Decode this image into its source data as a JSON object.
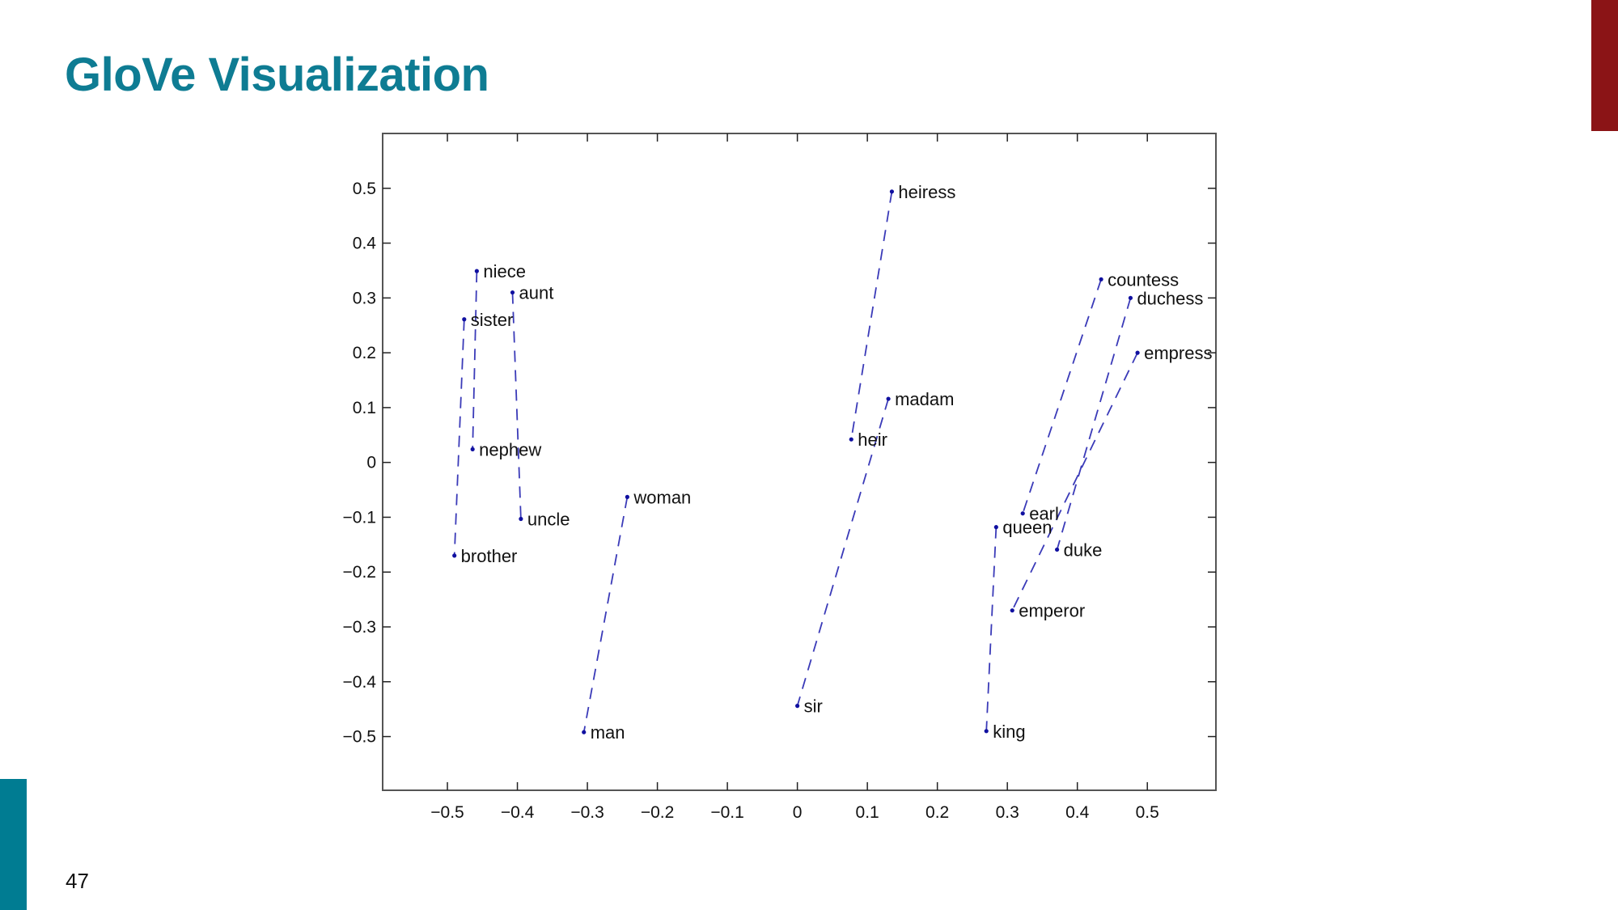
{
  "slide": {
    "title": "GloVe Visualization",
    "page_number": "47",
    "colors": {
      "title": "#0e7c93",
      "accent_top_right": "#8b1416",
      "accent_bottom_left": "#007c92",
      "series_line": "#3a3ab8",
      "point": "#1010a0",
      "axis": "#555555",
      "label": "#111111"
    }
  },
  "chart_data": {
    "type": "scatter",
    "title": "",
    "xlabel": "",
    "ylabel": "",
    "xlim": [
      -0.5925,
      0.598
    ],
    "ylim": [
      -0.598,
      0.6
    ],
    "grid": false,
    "legend": null,
    "xticks": [
      -0.5,
      -0.4,
      -0.3,
      -0.2,
      -0.1,
      0,
      0.1,
      0.2,
      0.3,
      0.4,
      0.5
    ],
    "xtick_labels": [
      "−0.5",
      "−0.4",
      "−0.3",
      "−0.2",
      "−0.1",
      "0",
      "0.1",
      "0.2",
      "0.3",
      "0.4",
      "0.5"
    ],
    "yticks": [
      0.5,
      0.4,
      0.3,
      0.2,
      0.1,
      0,
      -0.1,
      -0.2,
      -0.3,
      -0.4,
      -0.5
    ],
    "ytick_labels": [
      "0.5",
      "0.4",
      "0.3",
      "0.2",
      "0.1",
      "0",
      "−0.1",
      "−0.2",
      "−0.3",
      "−0.4",
      "−0.5"
    ],
    "points": [
      {
        "label": "niece",
        "x": -0.458,
        "y": 0.349
      },
      {
        "label": "aunt",
        "x": -0.407,
        "y": 0.31
      },
      {
        "label": "sister",
        "x": -0.476,
        "y": 0.261
      },
      {
        "label": "nephew",
        "x": -0.464,
        "y": 0.024
      },
      {
        "label": "uncle",
        "x": -0.395,
        "y": -0.103
      },
      {
        "label": "brother",
        "x": -0.49,
        "y": -0.17
      },
      {
        "label": "woman",
        "x": -0.243,
        "y": -0.063
      },
      {
        "label": "man",
        "x": -0.305,
        "y": -0.492
      },
      {
        "label": "heiress",
        "x": 0.135,
        "y": 0.494
      },
      {
        "label": "madam",
        "x": 0.13,
        "y": 0.116
      },
      {
        "label": "heir",
        "x": 0.077,
        "y": 0.042
      },
      {
        "label": "sir",
        "x": 0.0,
        "y": -0.444
      },
      {
        "label": "countess",
        "x": 0.434,
        "y": 0.334
      },
      {
        "label": "duchess",
        "x": 0.476,
        "y": 0.3
      },
      {
        "label": "empress",
        "x": 0.486,
        "y": 0.2
      },
      {
        "label": "earl",
        "x": 0.322,
        "y": -0.093
      },
      {
        "label": "queen",
        "x": 0.284,
        "y": -0.118
      },
      {
        "label": "duke",
        "x": 0.371,
        "y": -0.159
      },
      {
        "label": "emperor",
        "x": 0.307,
        "y": -0.27
      },
      {
        "label": "king",
        "x": 0.27,
        "y": -0.49
      }
    ],
    "pairs": [
      [
        "niece",
        "nephew"
      ],
      [
        "aunt",
        "uncle"
      ],
      [
        "sister",
        "brother"
      ],
      [
        "woman",
        "man"
      ],
      [
        "heiress",
        "heir"
      ],
      [
        "madam",
        "sir"
      ],
      [
        "countess",
        "earl"
      ],
      [
        "duchess",
        "duke"
      ],
      [
        "empress",
        "emperor"
      ],
      [
        "queen",
        "king"
      ]
    ],
    "pair_line_style": "dashed"
  }
}
